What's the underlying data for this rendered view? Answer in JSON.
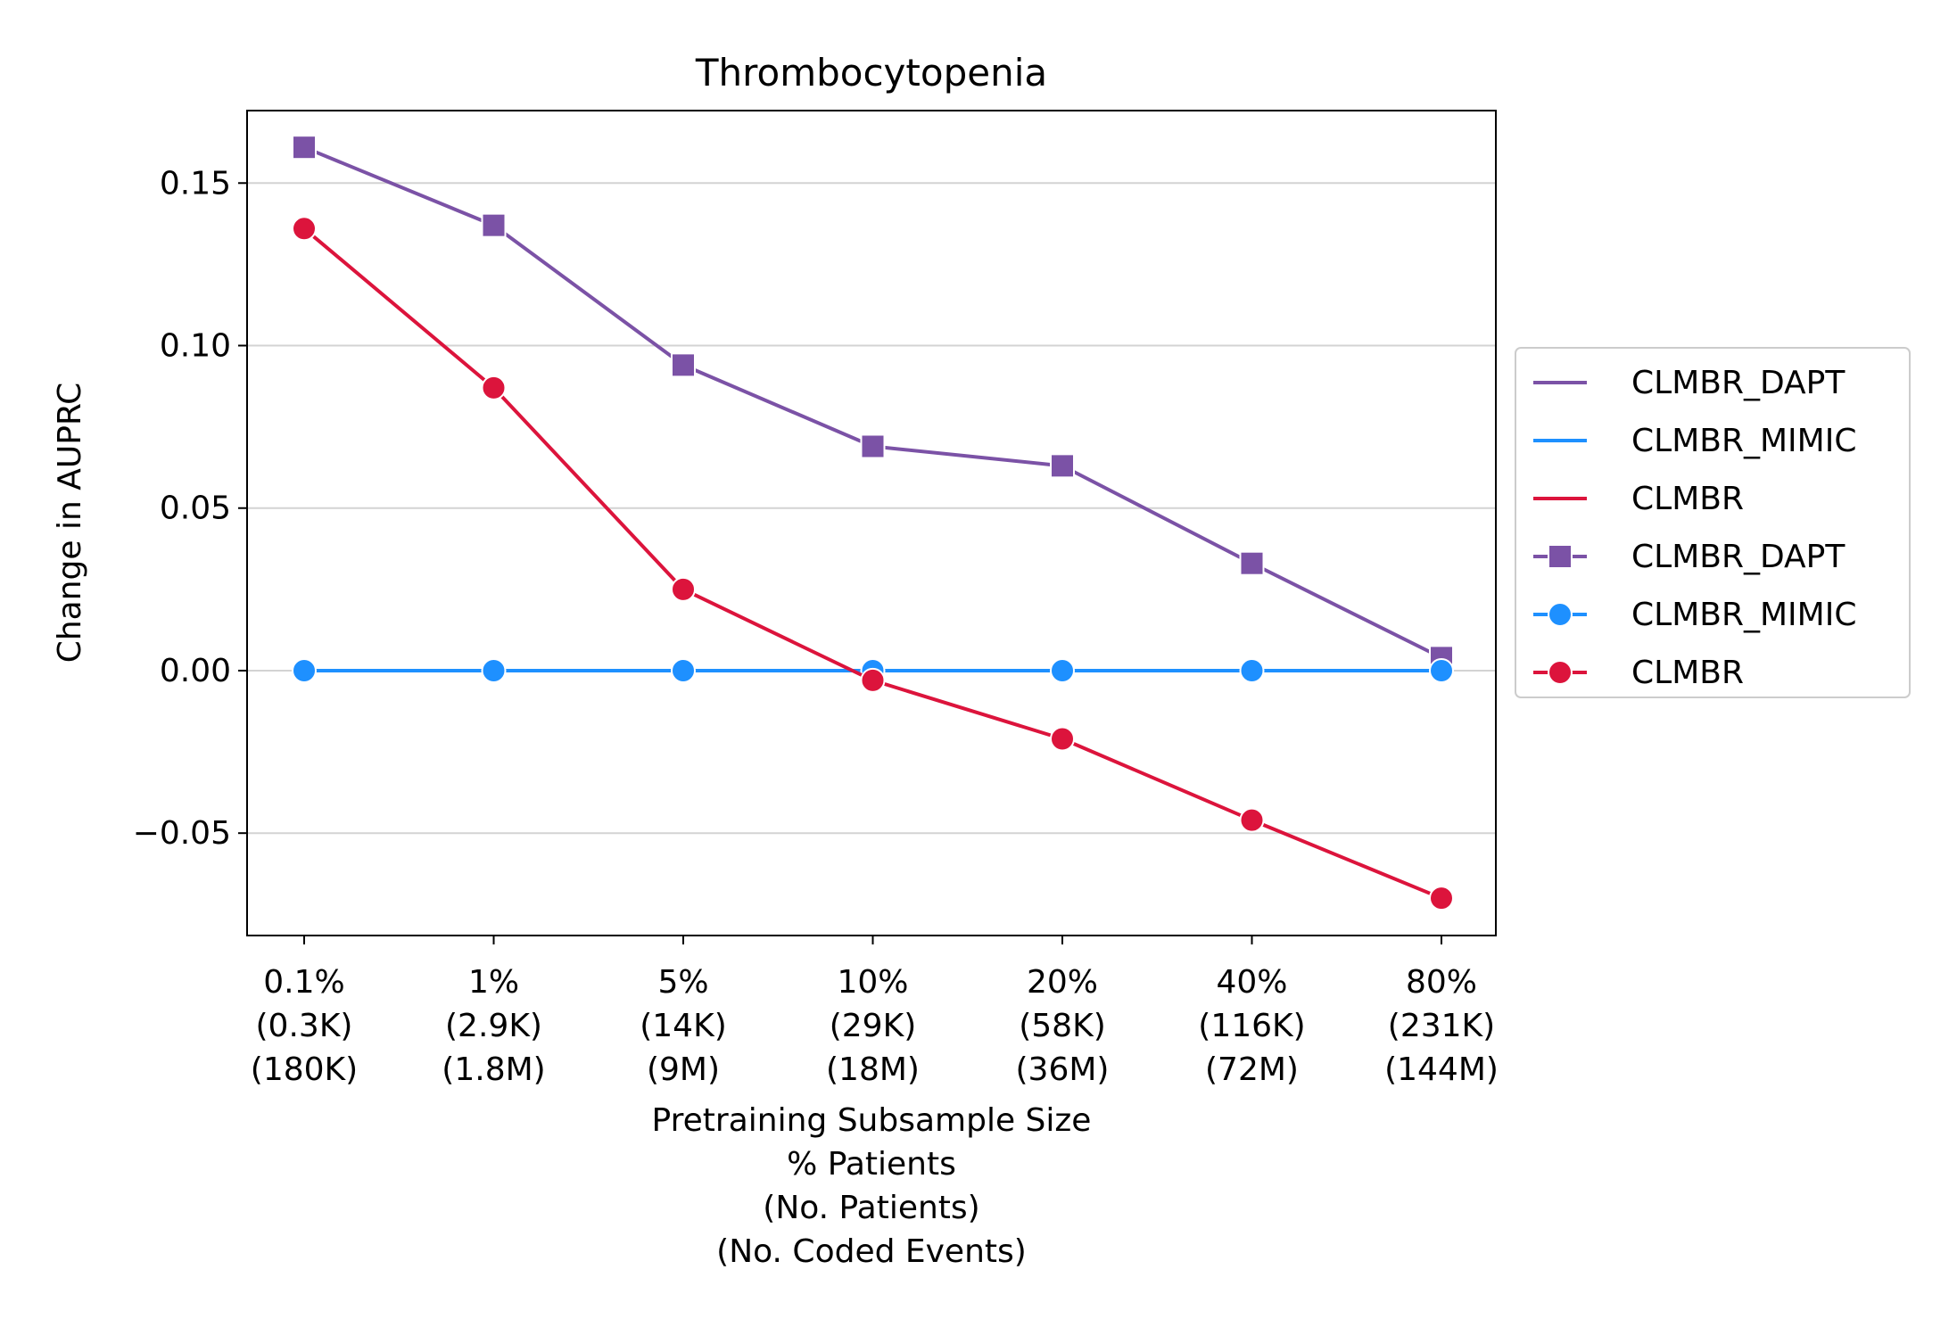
{
  "chart_data": {
    "type": "line",
    "title": "Thrombocytopenia",
    "xlabel_lines": [
      "Pretraining Subsample Size",
      "% Patients",
      "(No. Patients)",
      "(No. Coded Events)"
    ],
    "ylabel": "Change in AUPRC",
    "categories": [
      [
        "0.1%",
        "(0.3K)",
        "(180K)"
      ],
      [
        "1%",
        "(2.9K)",
        "(1.8M)"
      ],
      [
        "5%",
        "(14K)",
        "(9M)"
      ],
      [
        "10%",
        "(29K)",
        "(18M)"
      ],
      [
        "20%",
        "(58K)",
        "(36M)"
      ],
      [
        "40%",
        "(116K)",
        "(72M)"
      ],
      [
        "80%",
        "(231K)",
        "(144M)"
      ]
    ],
    "yticks": [
      -0.05,
      0.0,
      0.05,
      0.1,
      0.15
    ],
    "ytick_labels": [
      "−0.05",
      "0.00",
      "0.05",
      "0.10",
      "0.15"
    ],
    "ylim": [
      -0.0815,
      0.1723
    ],
    "grid": "horizontal",
    "legend_position": "right, outside",
    "series": [
      {
        "name": "CLMBR_DAPT",
        "color": "#7B52A6",
        "marker": "square",
        "values": [
          0.161,
          0.137,
          0.094,
          0.069,
          0.063,
          0.033,
          0.004
        ]
      },
      {
        "name": "CLMBR_MIMIC",
        "color": "#1E90FF",
        "marker": "circle",
        "values": [
          0.0,
          0.0,
          0.0,
          0.0,
          0.0,
          0.0,
          0.0
        ]
      },
      {
        "name": "CLMBR",
        "color": "#DC143C",
        "marker": "circle",
        "values": [
          0.136,
          0.087,
          0.025,
          -0.003,
          -0.021,
          -0.046,
          -0.07
        ]
      }
    ],
    "legend_entries": [
      {
        "label": "CLMBR_DAPT",
        "series": 0,
        "style": "line"
      },
      {
        "label": "CLMBR_MIMIC",
        "series": 1,
        "style": "line"
      },
      {
        "label": "CLMBR",
        "series": 2,
        "style": "line"
      },
      {
        "label": "CLMBR_DAPT",
        "series": 0,
        "style": "line-marker"
      },
      {
        "label": "CLMBR_MIMIC",
        "series": 1,
        "style": "line-marker"
      },
      {
        "label": "CLMBR",
        "series": 2,
        "style": "line-marker"
      }
    ]
  }
}
